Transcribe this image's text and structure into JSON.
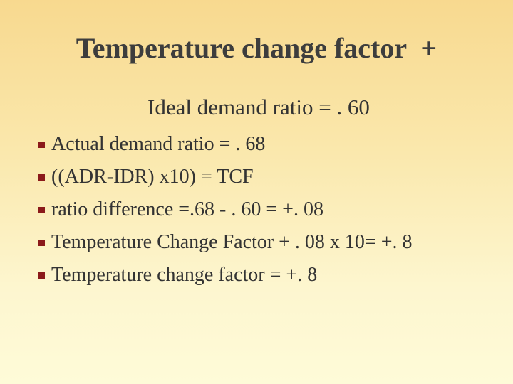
{
  "slide": {
    "title": "Temperature change factor  +",
    "subtitle": "Ideal demand ratio = . 60",
    "bullets": [
      "Actual demand ratio =  . 68",
      "((ADR-IDR) x10) = TCF",
      "ratio difference =.68 - . 60 = +. 08",
      "Temperature Change Factor + . 08 x 10= +. 8",
      "Temperature change factor =  +. 8"
    ]
  },
  "colors": {
    "background_top": "#f8d98f",
    "background_bottom": "#fefbd8",
    "bullet_marker": "#8b1a1a",
    "text": "#333333"
  }
}
